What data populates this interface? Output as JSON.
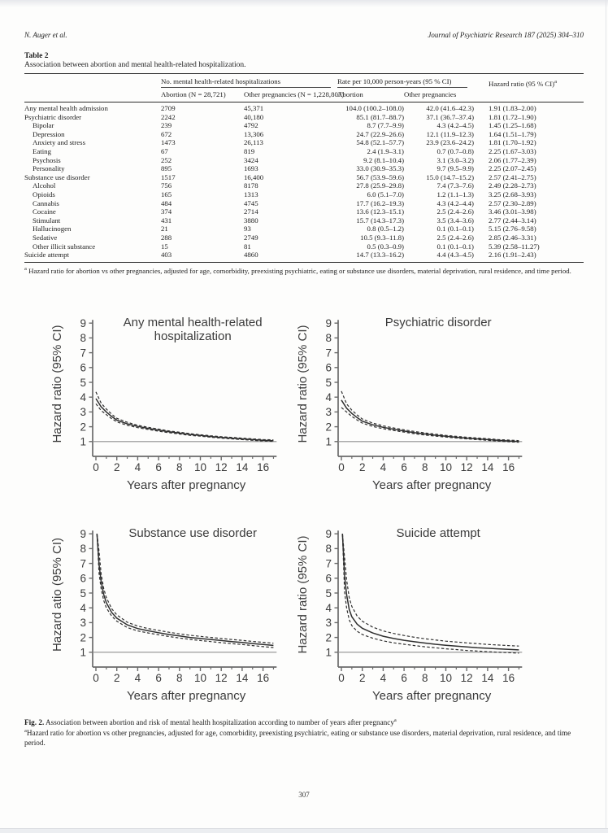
{
  "page": {
    "number": "307"
  },
  "running_head": {
    "left": "N. Auger et al.",
    "right": "Journal of Psychiatric Research 187 (2025) 304–310"
  },
  "table": {
    "label": "Table 2",
    "caption": "Association between abortion and mental health-related hospitalization.",
    "col_groups": {
      "n": "No. mental health-related hospitalizations",
      "rate": "Rate per 10,000 person-years (95 % CI)",
      "hr": "Hazard ratio (95 % CI)",
      "hr_sup": "a"
    },
    "sub_headers": {
      "n_abortion": "Abortion (N = 28,721)",
      "n_other": "Other pregnancies (N = 1,228,807)",
      "rate_abortion": "Abortion",
      "rate_other": "Other pregnancies"
    },
    "rows": [
      {
        "label": "Any mental health admission",
        "indent": 0,
        "n_abortion": "2709",
        "n_other": "45,371",
        "rate_abortion": "104.0 (100.2–108.0)",
        "rate_other": "42.0 (41.6–42.3)",
        "hr": "1.91 (1.83–2.00)"
      },
      {
        "label": "Psychiatric disorder",
        "indent": 0,
        "n_abortion": "2242",
        "n_other": "40,180",
        "rate_abortion": "85.1 (81.7–88.7)",
        "rate_other": "37.1 (36.7–37.4)",
        "hr": "1.81 (1.72–1.90)"
      },
      {
        "label": "Bipolar",
        "indent": 1,
        "n_abortion": "239",
        "n_other": "4792",
        "rate_abortion": "8.7 (7.7–9.9)",
        "rate_other": "4.3 (4.2–4.5)",
        "hr": "1.45 (1.25–1.68)"
      },
      {
        "label": "Depression",
        "indent": 1,
        "n_abortion": "672",
        "n_other": "13,306",
        "rate_abortion": "24.7 (22.9–26.6)",
        "rate_other": "12.1 (11.9–12.3)",
        "hr": "1.64 (1.51–1.79)"
      },
      {
        "label": "Anxiety and stress",
        "indent": 1,
        "n_abortion": "1473",
        "n_other": "26,113",
        "rate_abortion": "54.8 (52.1–57.7)",
        "rate_other": "23.9 (23.6–24.2)",
        "hr": "1.81 (1.70–1.92)"
      },
      {
        "label": "Eating",
        "indent": 1,
        "n_abortion": "67",
        "n_other": "819",
        "rate_abortion": "2.4 (1.9–3.1)",
        "rate_other": "0.7 (0.7–0.8)",
        "hr": "2.25 (1.67–3.03)"
      },
      {
        "label": "Psychosis",
        "indent": 1,
        "n_abortion": "252",
        "n_other": "3424",
        "rate_abortion": "9.2 (8.1–10.4)",
        "rate_other": "3.1 (3.0–3.2)",
        "hr": "2.06 (1.77–2.39)"
      },
      {
        "label": "Personality",
        "indent": 1,
        "n_abortion": "895",
        "n_other": "1693",
        "rate_abortion": "33.0 (30.9–35.3)",
        "rate_other": "9.7 (9.5–9.9)",
        "hr": "2.25 (2.07–2.45)"
      },
      {
        "label": "Substance use disorder",
        "indent": 0,
        "n_abortion": "1517",
        "n_other": "16,400",
        "rate_abortion": "56.7 (53.9–59.6)",
        "rate_other": "15.0 (14.7–15.2)",
        "hr": "2.57 (2.41–2.75)"
      },
      {
        "label": "Alcohol",
        "indent": 1,
        "n_abortion": "756",
        "n_other": "8178",
        "rate_abortion": "27.8 (25.9–29.8)",
        "rate_other": "7.4 (7.3–7.6)",
        "hr": "2.49 (2.28–2.73)"
      },
      {
        "label": "Opioids",
        "indent": 1,
        "n_abortion": "165",
        "n_other": "1313",
        "rate_abortion": "6.0 (5.1–7.0)",
        "rate_other": "1.2 (1.1–1.3)",
        "hr": "3.25 (2.68–3.93)"
      },
      {
        "label": "Cannabis",
        "indent": 1,
        "n_abortion": "484",
        "n_other": "4745",
        "rate_abortion": "17.7 (16.2–19.3)",
        "rate_other": "4.3 (4.2–4.4)",
        "hr": "2.57 (2.30–2.89)"
      },
      {
        "label": "Cocaine",
        "indent": 1,
        "n_abortion": "374",
        "n_other": "2714",
        "rate_abortion": "13.6 (12.3–15.1)",
        "rate_other": "2.5 (2.4–2.6)",
        "hr": "3.46 (3.01–3.98)"
      },
      {
        "label": "Stimulant",
        "indent": 1,
        "n_abortion": "431",
        "n_other": "3880",
        "rate_abortion": "15.7 (14.3–17.3)",
        "rate_other": "3.5 (3.4–3.6)",
        "hr": "2.77 (2.44–3.14)"
      },
      {
        "label": "Hallucinogen",
        "indent": 1,
        "n_abortion": "21",
        "n_other": "93",
        "rate_abortion": "0.8 (0.5–1.2)",
        "rate_other": "0.1 (0.1–0.1)",
        "hr": "5.15 (2.76–9.58)"
      },
      {
        "label": "Sedative",
        "indent": 1,
        "n_abortion": "288",
        "n_other": "2749",
        "rate_abortion": "10.5 (9.3–11.8)",
        "rate_other": "2.5 (2.4–2.6)",
        "hr": "2.85 (2.46–3.31)"
      },
      {
        "label": "Other illicit substance",
        "indent": 1,
        "n_abortion": "15",
        "n_other": "81",
        "rate_abortion": "0.5 (0.3–0.9)",
        "rate_other": "0.1 (0.1–0.1)",
        "hr": "5.39 (2.58–11.27)"
      },
      {
        "label": "Suicide attempt",
        "indent": 0,
        "n_abortion": "403",
        "n_other": "4860",
        "rate_abortion": "14.7 (13.3–16.2)",
        "rate_other": "4.4 (4.3–4.5)",
        "hr": "2.16 (1.91–2.43)"
      }
    ],
    "footnote_marker": "a",
    "footnote": "Hazard ratio for abortion vs other pregnancies, adjusted for age, comorbidity, preexisting psychiatric, eating or substance use disorders, material deprivation, rural residence, and time period."
  },
  "figure": {
    "label": "Fig. 2.",
    "caption": "Association between abortion and risk of mental health hospitalization according to number of years after pregnancy",
    "caption_sup": "a",
    "footnote_marker": "a",
    "footnote": "Hazard ratio for abortion vs other pregnancies, adjusted for age, comorbidity, preexisting psychiatric, eating or substance use disorders, material deprivation, rural residence, and time period."
  },
  "colors": {
    "text": "#1c1c1c",
    "chart_text": "#3b3b3b",
    "curve": "#2f2f2f",
    "axis": "#6a6a6a",
    "ref_line": "#8f8f8f"
  },
  "chart_data": [
    {
      "type": "line",
      "name": "any-mental-health",
      "title_lines": [
        "Any mental health-related",
        "hospitalization"
      ],
      "xlabel": "Years after pregnancy",
      "ylabel": "Hazard ratio (95% CI)",
      "xlim": [
        0,
        17.3
      ],
      "ylim": [
        0,
        9
      ],
      "yticks": [
        1,
        2,
        3,
        4,
        5,
        6,
        7,
        8,
        9
      ],
      "xticks_major": [
        0,
        2,
        4,
        6,
        8,
        10,
        12,
        14,
        16
      ],
      "xticks_minor": [
        1,
        3,
        5,
        7,
        9,
        11,
        13,
        15,
        17
      ],
      "ref_line": 1,
      "grid": false,
      "legend": "none",
      "x": [
        0,
        0.5,
        1,
        1.5,
        2,
        3,
        4,
        5,
        6,
        7,
        8,
        9,
        10,
        11,
        12,
        13,
        14,
        15,
        16,
        17
      ],
      "series": [
        {
          "name": "hazard-ratio",
          "style": "solid",
          "values": [
            3.9,
            3.35,
            3.0,
            2.7,
            2.45,
            2.2,
            2.02,
            1.89,
            1.77,
            1.66,
            1.57,
            1.48,
            1.41,
            1.34,
            1.28,
            1.23,
            1.18,
            1.13,
            1.09,
            1.06
          ]
        },
        {
          "name": "upper-95ci",
          "style": "dashed",
          "values": [
            4.35,
            3.6,
            3.2,
            2.85,
            2.57,
            2.3,
            2.1,
            1.96,
            1.84,
            1.72,
            1.63,
            1.54,
            1.46,
            1.39,
            1.33,
            1.28,
            1.23,
            1.18,
            1.14,
            1.11
          ]
        },
        {
          "name": "lower-95ci",
          "style": "dashed",
          "values": [
            3.55,
            3.1,
            2.82,
            2.55,
            2.33,
            2.1,
            1.94,
            1.82,
            1.7,
            1.6,
            1.51,
            1.42,
            1.36,
            1.29,
            1.23,
            1.18,
            1.13,
            1.08,
            1.04,
            1.01
          ]
        }
      ]
    },
    {
      "type": "line",
      "name": "psychiatric-disorder",
      "title_lines": [
        "Psychiatric disorder"
      ],
      "xlabel": "Years after pregnancy",
      "ylabel": "Hazard ratio (95% CI)",
      "xlim": [
        0,
        17.3
      ],
      "ylim": [
        0,
        9
      ],
      "yticks": [
        1,
        2,
        3,
        4,
        5,
        6,
        7,
        8,
        9
      ],
      "xticks_major": [
        0,
        2,
        4,
        6,
        8,
        10,
        12,
        14,
        16
      ],
      "xticks_minor": [
        1,
        3,
        5,
        7,
        9,
        11,
        13,
        15,
        17
      ],
      "ref_line": 1,
      "grid": false,
      "legend": "none",
      "x": [
        0,
        0.5,
        1,
        1.5,
        2,
        3,
        4,
        5,
        6,
        7,
        8,
        9,
        10,
        11,
        12,
        13,
        14,
        15,
        16,
        17
      ],
      "series": [
        {
          "name": "hazard-ratio",
          "style": "solid",
          "values": [
            3.8,
            3.25,
            2.9,
            2.62,
            2.38,
            2.13,
            1.96,
            1.83,
            1.71,
            1.6,
            1.51,
            1.43,
            1.36,
            1.29,
            1.23,
            1.18,
            1.13,
            1.08,
            1.04,
            1.0
          ]
        },
        {
          "name": "upper-95ci",
          "style": "dashed",
          "values": [
            4.4,
            3.55,
            3.12,
            2.8,
            2.52,
            2.25,
            2.06,
            1.92,
            1.79,
            1.68,
            1.58,
            1.5,
            1.42,
            1.35,
            1.29,
            1.24,
            1.19,
            1.14,
            1.1,
            1.06
          ]
        },
        {
          "name": "lower-95ci",
          "style": "dashed",
          "values": [
            3.3,
            3.0,
            2.7,
            2.46,
            2.25,
            2.02,
            1.87,
            1.75,
            1.64,
            1.53,
            1.44,
            1.37,
            1.3,
            1.24,
            1.18,
            1.13,
            1.08,
            1.03,
            0.99,
            0.95
          ]
        }
      ]
    },
    {
      "type": "line",
      "name": "substance-use-disorder",
      "title_lines": [
        "Substance use disorder"
      ],
      "xlabel": "Years after pregnancy",
      "ylabel": "Hazard atio (95% CI)",
      "xlim": [
        0,
        17.3
      ],
      "ylim": [
        0,
        9
      ],
      "yticks": [
        1,
        2,
        3,
        4,
        5,
        6,
        7,
        8,
        9
      ],
      "xticks_major": [
        0,
        2,
        4,
        6,
        8,
        10,
        12,
        14,
        16
      ],
      "xticks_minor": [
        1,
        3,
        5,
        7,
        9,
        11,
        13,
        15,
        17
      ],
      "ref_line": 1,
      "grid": false,
      "legend": "none",
      "x": [
        0.1,
        0.3,
        0.5,
        0.75,
        1,
        1.5,
        2,
        3,
        4,
        5,
        6,
        7,
        8,
        9,
        10,
        11,
        12,
        13,
        14,
        15,
        16,
        17
      ],
      "series": [
        {
          "name": "hazard-ratio",
          "style": "solid",
          "values": [
            9,
            6.9,
            5.8,
            4.9,
            4.35,
            3.7,
            3.3,
            2.85,
            2.6,
            2.45,
            2.32,
            2.2,
            2.1,
            2.0,
            1.93,
            1.86,
            1.79,
            1.72,
            1.66,
            1.59,
            1.52,
            1.46
          ]
        },
        {
          "name": "upper-95ci",
          "style": "dashed",
          "values": [
            9,
            7.8,
            6.3,
            5.3,
            4.7,
            3.95,
            3.52,
            3.03,
            2.77,
            2.6,
            2.47,
            2.35,
            2.24,
            2.15,
            2.07,
            2.0,
            1.93,
            1.86,
            1.8,
            1.73,
            1.67,
            1.61
          ]
        },
        {
          "name": "lower-95ci",
          "style": "dashed",
          "values": [
            9,
            6.3,
            5.3,
            4.5,
            4.0,
            3.45,
            3.1,
            2.67,
            2.44,
            2.3,
            2.18,
            2.06,
            1.96,
            1.87,
            1.79,
            1.72,
            1.65,
            1.58,
            1.52,
            1.45,
            1.38,
            1.32
          ]
        }
      ]
    },
    {
      "type": "line",
      "name": "suicide-attempt",
      "title_lines": [
        "Suicide attempt"
      ],
      "xlabel": "Years after pregnancy",
      "ylabel": "Hazard ratio (95% CI)",
      "xlim": [
        0,
        17.3
      ],
      "ylim": [
        0,
        9
      ],
      "yticks": [
        1,
        2,
        3,
        4,
        5,
        6,
        7,
        8,
        9
      ],
      "xticks_major": [
        0,
        2,
        4,
        6,
        8,
        10,
        12,
        14,
        16
      ],
      "xticks_minor": [
        1,
        3,
        5,
        7,
        9,
        11,
        13,
        15,
        17
      ],
      "ref_line": 1,
      "grid": false,
      "legend": "none",
      "x": [
        0.1,
        0.3,
        0.5,
        0.75,
        1,
        1.5,
        2,
        3,
        4,
        5,
        6,
        7,
        8,
        9,
        10,
        11,
        12,
        13,
        14,
        15,
        16,
        17
      ],
      "series": [
        {
          "name": "hazard-ratio",
          "style": "solid",
          "values": [
            9,
            6.2,
            4.9,
            3.9,
            3.4,
            2.9,
            2.62,
            2.3,
            2.08,
            1.93,
            1.81,
            1.71,
            1.62,
            1.54,
            1.47,
            1.41,
            1.36,
            1.31,
            1.27,
            1.23,
            1.19,
            1.16
          ]
        },
        {
          "name": "upper-95ci",
          "style": "dashed",
          "values": [
            9,
            7.4,
            5.9,
            4.7,
            4.1,
            3.45,
            3.1,
            2.7,
            2.44,
            2.27,
            2.13,
            2.01,
            1.91,
            1.83,
            1.75,
            1.69,
            1.63,
            1.58,
            1.53,
            1.49,
            1.45,
            1.42
          ]
        },
        {
          "name": "lower-95ci",
          "style": "dashed",
          "values": [
            9,
            5.1,
            4.0,
            3.2,
            2.8,
            2.42,
            2.2,
            1.95,
            1.77,
            1.64,
            1.54,
            1.45,
            1.37,
            1.3,
            1.23,
            1.18,
            1.12,
            1.08,
            1.04,
            1.0,
            0.97,
            0.94
          ]
        }
      ]
    }
  ]
}
